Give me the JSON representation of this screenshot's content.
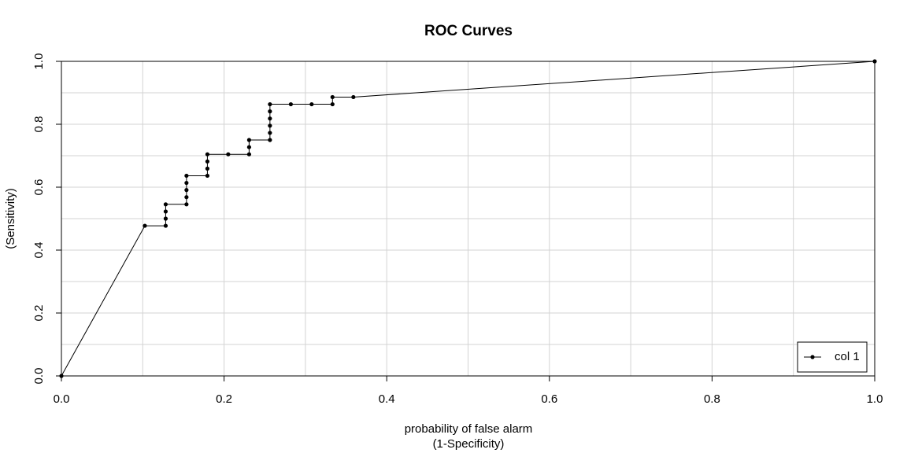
{
  "chart_data": {
    "type": "line",
    "title": "ROC Curves",
    "xlabel": [
      "probability of false alarm",
      "(1-Specificity)"
    ],
    "ylabel": "(Sensitivity)",
    "series": [
      {
        "name": "col 1",
        "color": "#000000",
        "marker": true,
        "x": [
          0,
          0.1026,
          0.1282,
          0.1282,
          0.1282,
          0.1282,
          0.1538,
          0.1538,
          0.1538,
          0.1538,
          0.1538,
          0.1795,
          0.1795,
          0.1795,
          0.1795,
          0.2051,
          0.2308,
          0.2308,
          0.2308,
          0.2564,
          0.2564,
          0.2564,
          0.2564,
          0.2564,
          0.2564,
          0.2821,
          0.3077,
          0.3333,
          0.3333,
          0.359,
          1
        ],
        "y": [
          0,
          0.4773,
          0.4773,
          0.5,
          0.5227,
          0.5455,
          0.5455,
          0.5682,
          0.5909,
          0.6136,
          0.6364,
          0.6364,
          0.6591,
          0.6818,
          0.7045,
          0.7045,
          0.7045,
          0.7273,
          0.75,
          0.75,
          0.7727,
          0.7955,
          0.8182,
          0.8409,
          0.8636,
          0.8636,
          0.8636,
          0.8636,
          0.8864,
          0.8864,
          1
        ]
      }
    ],
    "xlim": [
      0,
      1
    ],
    "ylim": [
      0,
      1
    ],
    "xticks": [
      {
        "value": 0,
        "label": "0.0"
      },
      0.2,
      0.4,
      0.6,
      0.8,
      {
        "value": 1,
        "label": "1.0"
      }
    ],
    "yticks": [
      {
        "value": 0,
        "label": "0.0"
      },
      0.2,
      0.4,
      0.6,
      0.8,
      {
        "value": 1,
        "label": "1.0"
      }
    ],
    "xgrid": [
      0.1,
      0.2,
      0.3,
      0.4,
      0.5,
      0.6,
      0.7,
      0.8,
      0.9
    ],
    "ygrid": [
      0.1,
      0.2,
      0.3,
      0.4,
      0.5,
      0.6,
      0.7,
      0.8,
      0.9
    ],
    "legend": "bottom-right"
  }
}
